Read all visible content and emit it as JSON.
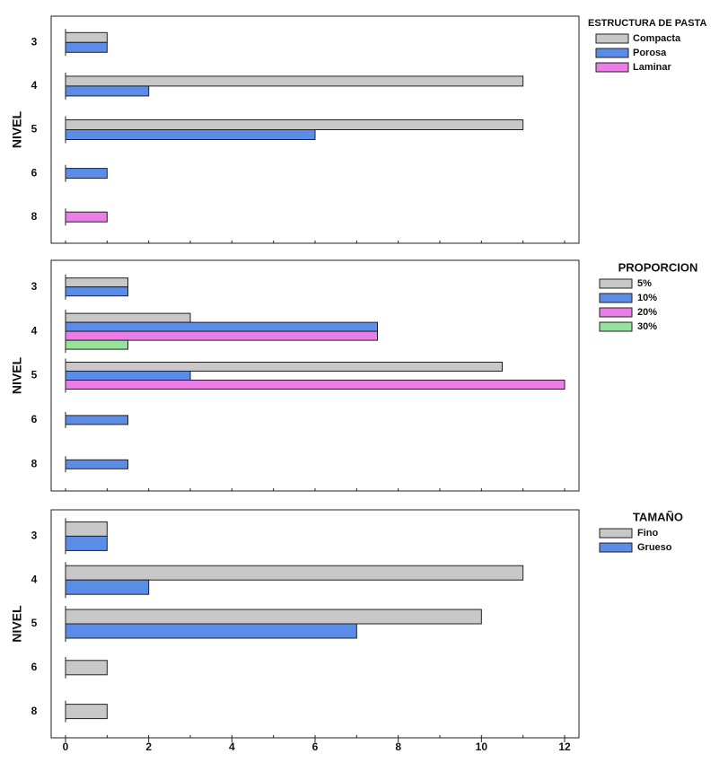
{
  "chart_data": [
    {
      "type": "bar",
      "orientation": "horizontal",
      "ylabel": "NIVEL",
      "legend_title": "ESTRUCTURA DE PASTA",
      "categories": [
        "3",
        "4",
        "5",
        "6",
        "8"
      ],
      "xlim": [
        0,
        12
      ],
      "series": [
        {
          "name": "Compacta",
          "color": "#c8c8c8",
          "values": [
            1,
            11,
            11,
            null,
            null
          ]
        },
        {
          "name": "Porosa",
          "color": "#5b8de8",
          "values": [
            1,
            2,
            6,
            1,
            null
          ]
        },
        {
          "name": "Laminar",
          "color": "#ea7ee6",
          "values": [
            null,
            null,
            null,
            null,
            1
          ]
        }
      ]
    },
    {
      "type": "bar",
      "orientation": "horizontal",
      "ylabel": "NIVEL",
      "legend_title": "PROPORCION",
      "categories": [
        "3",
        "4",
        "5",
        "6",
        "8"
      ],
      "xlim": [
        0,
        12
      ],
      "series": [
        {
          "name": "5%",
          "color": "#c8c8c8",
          "values": [
            1.5,
            3,
            10.5,
            null,
            null
          ]
        },
        {
          "name": "10%",
          "color": "#5b8de8",
          "values": [
            1.5,
            7.5,
            3,
            1.5,
            1.5
          ]
        },
        {
          "name": "20%",
          "color": "#ea7ee6",
          "values": [
            null,
            7.5,
            12,
            null,
            null
          ]
        },
        {
          "name": "30%",
          "color": "#93e49a",
          "values": [
            null,
            1.5,
            null,
            null,
            null
          ]
        }
      ]
    },
    {
      "type": "bar",
      "orientation": "horizontal",
      "ylabel": "NIVEL",
      "legend_title": "TAMAÑO",
      "categories": [
        "3",
        "4",
        "5",
        "6",
        "8"
      ],
      "xlim": [
        0,
        12
      ],
      "xticks": [
        0,
        2,
        4,
        6,
        8,
        10,
        12
      ],
      "series": [
        {
          "name": "Fino",
          "color": "#c8c8c8",
          "values": [
            1,
            11,
            10,
            1,
            1
          ]
        },
        {
          "name": "Grueso",
          "color": "#5b8de8",
          "values": [
            1,
            2,
            7,
            null,
            null
          ]
        }
      ]
    }
  ]
}
